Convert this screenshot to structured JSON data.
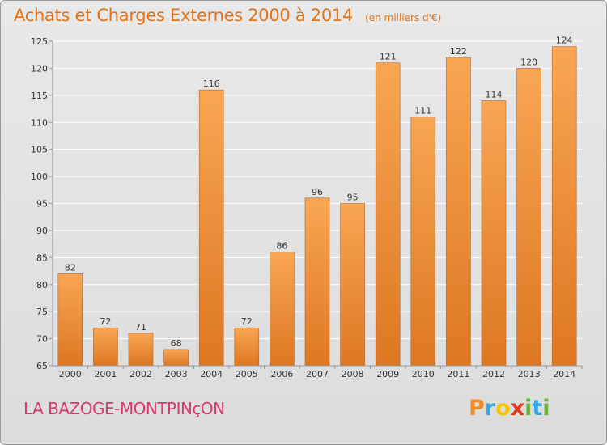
{
  "header": {
    "title": "Achats et Charges Externes 2000 à 2014",
    "unit": "(en milliers d'€)"
  },
  "footer": {
    "commune": "LA BAZOGE-MONTPINçON",
    "logo": {
      "letters": [
        "P",
        "r",
        "o",
        "x",
        "i",
        "t",
        "i"
      ],
      "colors": [
        "#f28c28",
        "#35a6e0",
        "#f6c400",
        "#e0391c",
        "#6cb43f",
        "#35a6e0",
        "#6cb43f"
      ]
    }
  },
  "colors": {
    "bar_light": "#f8a653",
    "bar_dark": "#dd7722",
    "bar_edge": "#b0652a",
    "axis": "#9a9a9a",
    "grid": "#ffffff",
    "text": "#333333"
  },
  "chart_data": {
    "type": "bar",
    "categories": [
      "2000",
      "2001",
      "2002",
      "2003",
      "2004",
      "2005",
      "2006",
      "2007",
      "2008",
      "2009",
      "2010",
      "2011",
      "2012",
      "2013",
      "2014"
    ],
    "values": [
      82,
      72,
      71,
      68,
      116,
      72,
      86,
      96,
      95,
      121,
      111,
      122,
      114,
      120,
      124
    ],
    "ylim": [
      65,
      125
    ],
    "yticks": [
      65,
      70,
      75,
      80,
      85,
      90,
      95,
      100,
      105,
      110,
      115,
      120,
      125
    ],
    "grid": true,
    "data_labels": true
  }
}
